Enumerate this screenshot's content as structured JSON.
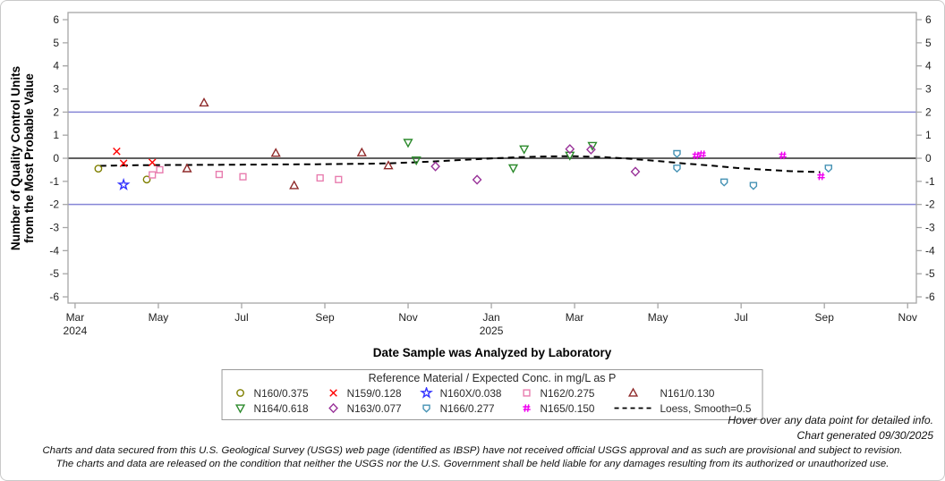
{
  "chart": {
    "y_axis_title_line1": "Number of Quality Control Units",
    "y_axis_title_line2": "from the Most Probable Value",
    "x_axis_title": "Date Sample was Analyzed by Laboratory"
  },
  "legend": {
    "title": "Reference Material / Expected Conc. in mg/L as P",
    "entries": [
      {
        "label": "N160/0.375",
        "marker": "circle",
        "color": "#7f7f00"
      },
      {
        "label": "N159/0.128",
        "marker": "x",
        "color": "#ff0000"
      },
      {
        "label": "N160X/0.038",
        "marker": "star",
        "color": "#3333ff"
      },
      {
        "label": "N162/0.275",
        "marker": "square",
        "color": "#e87daf"
      },
      {
        "label": "N161/0.130",
        "marker": "triangle-up",
        "color": "#8f2a2a"
      },
      {
        "label": "N164/0.618",
        "marker": "triangle-down",
        "color": "#2c8a2c"
      },
      {
        "label": "N163/0.077",
        "marker": "diamond",
        "color": "#993399"
      },
      {
        "label": "N166/0.277",
        "marker": "shield",
        "color": "#4592b4"
      },
      {
        "label": "N165/0.150",
        "marker": "hash",
        "color": "#f000f0"
      },
      {
        "label": "Loess, Smooth=0.5",
        "marker": "dashed-line",
        "color": "#000000"
      }
    ]
  },
  "notes": {
    "hover": "Hover over any data point for detailed info.",
    "generated": "Chart generated 09/30/2025",
    "disclaimer1": "Charts and data secured from this U.S. Geological Survey (USGS) web page (identified as IBSP) have not received official USGS approval and as such are provisional and subject to revision.",
    "disclaimer2": "The charts and data are released on the condition that neither the USGS nor the U.S. Government shall be held liable for any damages resulting from its authorized or unauthorized use."
  },
  "chart_data": {
    "type": "scatter",
    "title": "",
    "xlabel": "Date Sample was Analyzed by Laboratory",
    "ylabel": "Number of Quality Control Units from the Most Probable Value",
    "ylim": [
      -6.3,
      6.3
    ],
    "y_ticks": [
      6,
      5,
      4,
      3,
      2,
      1,
      0,
      -1,
      -2,
      -3,
      -4,
      -5,
      -6
    ],
    "x_axis": {
      "months_origin": "2024-03-01",
      "range_months": [
        -0.17,
        20.21
      ],
      "ticks": [
        {
          "m": 0,
          "label": "Mar",
          "year": "2024"
        },
        {
          "m": 2,
          "label": "May"
        },
        {
          "m": 4,
          "label": "Jul"
        },
        {
          "m": 6,
          "label": "Sep"
        },
        {
          "m": 8,
          "label": "Nov"
        },
        {
          "m": 10,
          "label": "Jan",
          "year": "2025"
        },
        {
          "m": 12,
          "label": "Mar"
        },
        {
          "m": 14,
          "label": "May"
        },
        {
          "m": 16,
          "label": "Jul"
        },
        {
          "m": 18,
          "label": "Sep"
        },
        {
          "m": 20,
          "label": "Nov"
        }
      ]
    },
    "reference_lines": [
      {
        "y": 2,
        "color": "#8585d6",
        "width": 1.5
      },
      {
        "y": 0,
        "color": "#606060",
        "width": 2
      },
      {
        "y": -2,
        "color": "#8585d6",
        "width": 1.5
      }
    ],
    "series": [
      {
        "name": "N160/0.375",
        "marker": "circle",
        "color": "#7f7f00",
        "points": [
          {
            "date": "2024-03-18",
            "y": -0.45
          },
          {
            "date": "2024-04-23",
            "y": -0.92
          }
        ]
      },
      {
        "name": "N159/0.128",
        "marker": "x",
        "color": "#ff0000",
        "points": [
          {
            "date": "2024-04-01",
            "y": 0.3
          },
          {
            "date": "2024-04-06",
            "y": -0.22
          },
          {
            "date": "2024-04-27",
            "y": -0.18
          }
        ]
      },
      {
        "name": "N160X/0.038",
        "marker": "star",
        "color": "#3333ff",
        "points": [
          {
            "date": "2024-04-06",
            "y": -1.15
          }
        ]
      },
      {
        "name": "N162/0.275",
        "marker": "square",
        "color": "#e87daf",
        "points": [
          {
            "date": "2024-04-27",
            "y": -0.72
          },
          {
            "date": "2024-05-02",
            "y": -0.5
          },
          {
            "date": "2024-06-15",
            "y": -0.7
          },
          {
            "date": "2024-07-02",
            "y": -0.8
          },
          {
            "date": "2024-08-28",
            "y": -0.85
          },
          {
            "date": "2024-09-11",
            "y": -0.92
          }
        ]
      },
      {
        "name": "N161/0.130",
        "marker": "triangle-up",
        "color": "#8f2a2a",
        "points": [
          {
            "date": "2024-05-22",
            "y": -0.45
          },
          {
            "date": "2024-06-04",
            "y": 2.4
          },
          {
            "date": "2024-07-26",
            "y": 0.22
          },
          {
            "date": "2024-08-09",
            "y": -1.18
          },
          {
            "date": "2024-09-28",
            "y": 0.24
          },
          {
            "date": "2024-10-17",
            "y": -0.32
          }
        ]
      },
      {
        "name": "N164/0.618",
        "marker": "triangle-down",
        "color": "#2c8a2c",
        "points": [
          {
            "date": "2024-11-01",
            "y": 0.68
          },
          {
            "date": "2024-11-07",
            "y": -0.08
          },
          {
            "date": "2025-01-17",
            "y": -0.42
          },
          {
            "date": "2025-01-25",
            "y": 0.4
          },
          {
            "date": "2025-02-28",
            "y": 0.13
          },
          {
            "date": "2025-03-14",
            "y": 0.55
          }
        ]
      },
      {
        "name": "N163/0.077",
        "marker": "diamond",
        "color": "#993399",
        "points": [
          {
            "date": "2024-11-21",
            "y": -0.35
          },
          {
            "date": "2024-12-21",
            "y": -0.93
          },
          {
            "date": "2025-02-28",
            "y": 0.4
          },
          {
            "date": "2025-03-13",
            "y": 0.38
          },
          {
            "date": "2025-04-15",
            "y": -0.58
          }
        ]
      },
      {
        "name": "N166/0.277",
        "marker": "shield",
        "color": "#4592b4",
        "points": [
          {
            "date": "2025-05-15",
            "y": 0.2
          },
          {
            "date": "2025-05-15",
            "y": -0.43
          },
          {
            "date": "2025-06-19",
            "y": -1.03
          },
          {
            "date": "2025-07-10",
            "y": -1.18
          },
          {
            "date": "2025-09-04",
            "y": -0.43
          }
        ]
      },
      {
        "name": "N165/0.150",
        "marker": "hash",
        "color": "#f000f0",
        "points": [
          {
            "date": "2025-05-29",
            "y": 0.12
          },
          {
            "date": "2025-06-03",
            "y": 0.17
          },
          {
            "date": "2025-08-01",
            "y": 0.12
          },
          {
            "date": "2025-08-29",
            "y": -0.78
          }
        ]
      }
    ],
    "loess_curve": {
      "name": "Loess, Smooth=0.5",
      "style": "dashed",
      "color": "#000000",
      "points_months_value": [
        [
          0.6,
          -0.33
        ],
        [
          1.5,
          -0.3
        ],
        [
          2.5,
          -0.29
        ],
        [
          3.6,
          -0.28
        ],
        [
          4.7,
          -0.27
        ],
        [
          5.8,
          -0.26
        ],
        [
          6.9,
          -0.24
        ],
        [
          7.5,
          -0.22
        ],
        [
          8.1,
          -0.18
        ],
        [
          8.8,
          -0.12
        ],
        [
          9.4,
          -0.06
        ],
        [
          10.1,
          0.0
        ],
        [
          10.7,
          0.05
        ],
        [
          11.4,
          0.08
        ],
        [
          12.0,
          0.09
        ],
        [
          12.7,
          0.05
        ],
        [
          13.3,
          -0.02
        ],
        [
          14.0,
          -0.12
        ],
        [
          14.6,
          -0.22
        ],
        [
          15.3,
          -0.32
        ],
        [
          15.9,
          -0.42
        ],
        [
          16.6,
          -0.5
        ],
        [
          17.2,
          -0.56
        ],
        [
          17.9,
          -0.6
        ]
      ]
    },
    "legend_position": "bottom",
    "grid": false
  }
}
